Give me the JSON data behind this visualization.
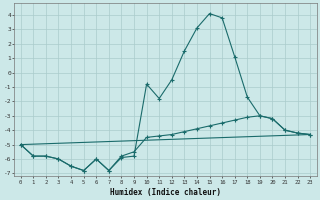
{
  "xlabel": "Humidex (Indice chaleur)",
  "bg_color": "#cce8e8",
  "grid_color": "#aacccc",
  "line_color": "#1a6b6b",
  "xlim": [
    -0.5,
    23.5
  ],
  "ylim": [
    -7.2,
    4.8
  ],
  "xticks": [
    0,
    1,
    2,
    3,
    4,
    5,
    6,
    7,
    8,
    9,
    10,
    11,
    12,
    13,
    14,
    15,
    16,
    17,
    18,
    19,
    20,
    21,
    22,
    23
  ],
  "yticks": [
    -7,
    -6,
    -5,
    -4,
    -3,
    -2,
    -1,
    0,
    1,
    2,
    3,
    4
  ],
  "curve_spike": [
    [
      0,
      -5.0
    ],
    [
      1,
      -5.8
    ],
    [
      2,
      -5.8
    ],
    [
      3,
      -6.0
    ],
    [
      4,
      -6.5
    ],
    [
      5,
      -6.8
    ],
    [
      6,
      -6.0
    ],
    [
      7,
      -6.8
    ],
    [
      8,
      -5.9
    ],
    [
      9,
      -5.8
    ],
    [
      10,
      -0.8
    ],
    [
      11,
      -1.8
    ],
    [
      12,
      -0.5
    ],
    [
      13,
      1.5
    ],
    [
      14,
      3.1
    ],
    [
      15,
      4.1
    ],
    [
      16,
      3.8
    ],
    [
      17,
      1.1
    ],
    [
      18,
      -1.7
    ],
    [
      19,
      -3.0
    ],
    [
      20,
      -3.2
    ],
    [
      21,
      -4.0
    ],
    [
      22,
      -4.2
    ],
    [
      23,
      -4.3
    ]
  ],
  "curve_middle": [
    [
      0,
      -5.0
    ],
    [
      1,
      -5.8
    ],
    [
      2,
      -5.8
    ],
    [
      3,
      -6.0
    ],
    [
      4,
      -6.5
    ],
    [
      5,
      -6.8
    ],
    [
      6,
      -6.0
    ],
    [
      7,
      -6.8
    ],
    [
      8,
      -5.8
    ],
    [
      9,
      -5.5
    ],
    [
      10,
      -4.5
    ],
    [
      11,
      -4.4
    ],
    [
      12,
      -4.3
    ],
    [
      13,
      -4.1
    ],
    [
      14,
      -3.9
    ],
    [
      15,
      -3.7
    ],
    [
      16,
      -3.5
    ],
    [
      17,
      -3.3
    ],
    [
      18,
      -3.1
    ],
    [
      19,
      -3.0
    ],
    [
      20,
      -3.2
    ],
    [
      21,
      -4.0
    ],
    [
      22,
      -4.2
    ],
    [
      23,
      -4.3
    ]
  ],
  "curve_straight": [
    [
      0,
      -5.0
    ],
    [
      23,
      -4.3
    ]
  ]
}
